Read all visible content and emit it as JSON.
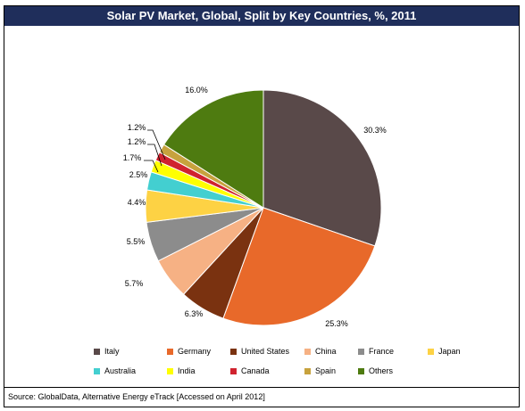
{
  "title": "Solar PV Market, Global, Split by Key Countries, %, 2011",
  "source": "Source: GlobalData, Alternative Energy eTrack [Accessed on April 2012]",
  "chart_data": {
    "type": "pie",
    "title": "Solar PV Market, Global, Split by Key Countries, %, 2011",
    "start_angle": "12 o'clock, clockwise",
    "legend_position": "bottom",
    "slices": [
      {
        "label": "Italy",
        "value": 30.3,
        "value_label": "30.3%",
        "color": "#594949"
      },
      {
        "label": "Germany",
        "value": 25.3,
        "value_label": "25.3%",
        "color": "#e8692a"
      },
      {
        "label": "United States",
        "value": 6.3,
        "value_label": "6.3%",
        "color": "#7a3210"
      },
      {
        "label": "China",
        "value": 5.7,
        "value_label": "5.7%",
        "color": "#f6b184"
      },
      {
        "label": "France",
        "value": 5.5,
        "value_label": "5.5%",
        "color": "#8c8c8c"
      },
      {
        "label": "Japan",
        "value": 4.4,
        "value_label": "4.4%",
        "color": "#fdd244"
      },
      {
        "label": "Australia",
        "value": 2.5,
        "value_label": "2.5%",
        "color": "#43cfd0"
      },
      {
        "label": "India",
        "value": 1.7,
        "value_label": "1.7%",
        "color": "#ffff00"
      },
      {
        "label": "Canada",
        "value": 1.2,
        "value_label": "1.2%",
        "color": "#d0232f"
      },
      {
        "label": "Spain",
        "value": 1.2,
        "value_label": "1.2%",
        "color": "#c7a23d"
      },
      {
        "label": "Others",
        "value": 16.0,
        "value_label": "16.0%",
        "color": "#4e7b10"
      }
    ]
  }
}
